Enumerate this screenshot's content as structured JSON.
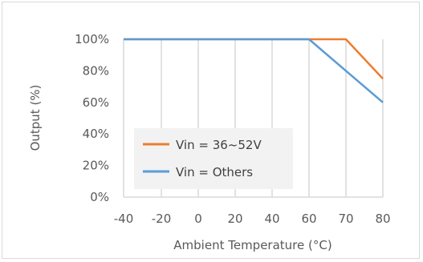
{
  "chart_data": {
    "type": "line",
    "title": "",
    "xlabel": "Ambient Temperature (°C)",
    "ylabel": "Output (%)",
    "x_categories": [
      "-40",
      "-20",
      "0",
      "20",
      "40",
      "60",
      "70",
      "80"
    ],
    "y_ticks": [
      "0%",
      "20%",
      "40%",
      "60%",
      "80%",
      "100%"
    ],
    "ylim": [
      0,
      100
    ],
    "grid": "vertical",
    "legend_placement": "center-left",
    "series": [
      {
        "name": "Vin = 36~52V",
        "color": "#ed7d31",
        "values": [
          100,
          100,
          100,
          100,
          100,
          100,
          100,
          75
        ]
      },
      {
        "name": "Vin = Others",
        "color": "#5b9bd5",
        "values": [
          100,
          100,
          100,
          100,
          100,
          100,
          80,
          60
        ]
      }
    ]
  }
}
